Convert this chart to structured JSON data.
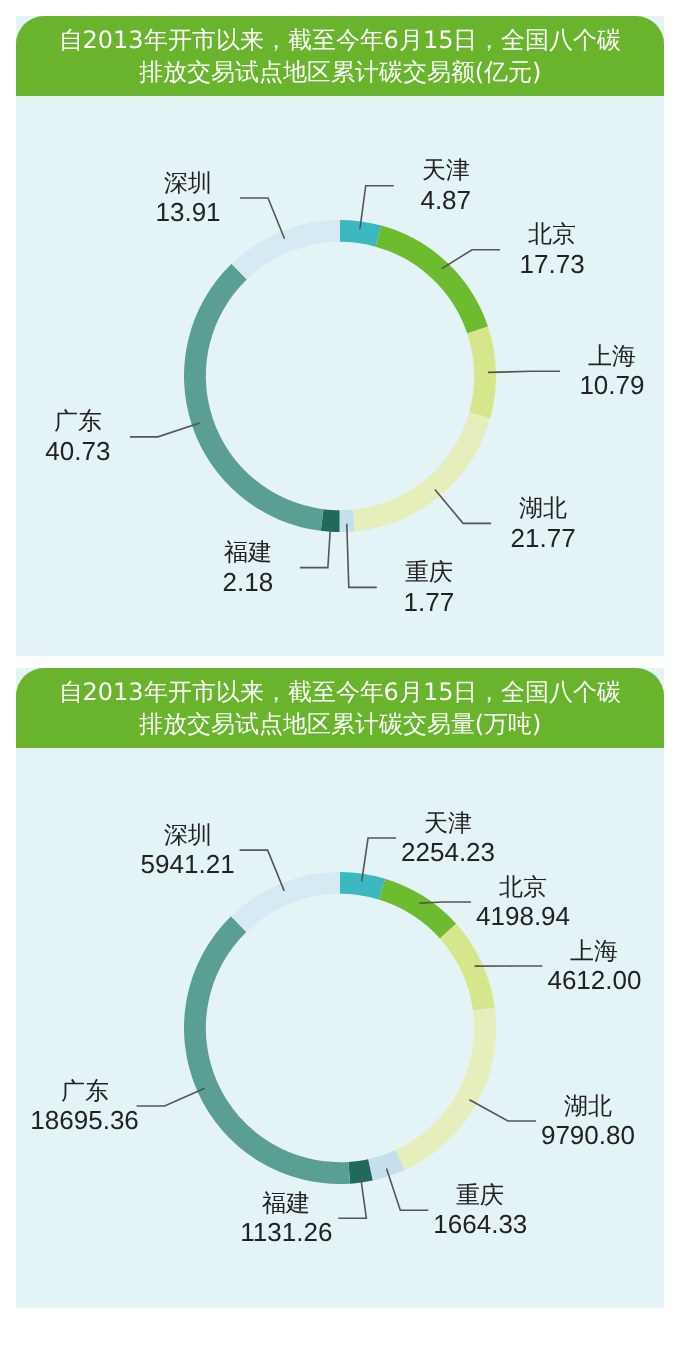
{
  "chart_data": [
    {
      "type": "donut",
      "title": "自2013年开市以来，截至今年6月15日，全国八个碳排放交易试点地区累计碳交易额(亿元)",
      "categories": [
        "天津",
        "北京",
        "上海",
        "湖北",
        "重庆",
        "福建",
        "广东",
        "深圳"
      ],
      "values": [
        4.87,
        17.73,
        10.79,
        21.77,
        1.77,
        2.18,
        40.73,
        13.91
      ],
      "colors": [
        "#3cb8c0",
        "#6dbb2e",
        "#d6e68a",
        "#e6eebc",
        "#c3e0ec",
        "#1e6b5c",
        "#5a9e94",
        "#d5eaf2"
      ],
      "data_labels": true
    },
    {
      "type": "donut",
      "title": "自2013年开市以来，截至今年6月15日，全国八个碳排放交易试点地区累计碳交易量(万吨)",
      "categories": [
        "天津",
        "北京",
        "上海",
        "湖北",
        "重庆",
        "福建",
        "广东",
        "深圳"
      ],
      "values": [
        2254.23,
        4198.94,
        4612.0,
        9790.8,
        1664.33,
        1131.26,
        18695.36,
        5941.21
      ],
      "value_labels": [
        "2254.23",
        "4198.94",
        "4612.00",
        "9790.80",
        "1664.33",
        "1131.26",
        "18695.36",
        "5941.21"
      ],
      "colors": [
        "#3cb8c0",
        "#6dbb2e",
        "#d6e68a",
        "#e6eebc",
        "#c3e0ec",
        "#1e6b5c",
        "#5a9e94",
        "#d5eaf2"
      ]
    }
  ]
}
